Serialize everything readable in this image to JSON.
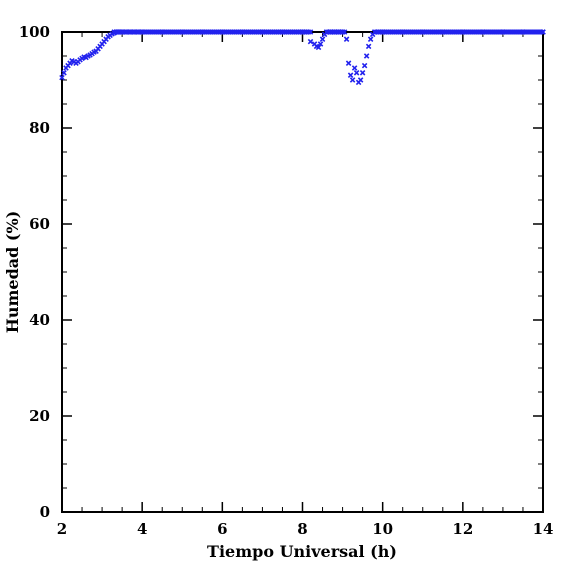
{
  "chart_data": {
    "type": "scatter",
    "title": "",
    "xlabel": "Tiempo Universal (h)",
    "ylabel": "Humedad (%)",
    "xlim": [
      2,
      14
    ],
    "ylim": [
      0,
      100
    ],
    "x_ticks": [
      "2",
      "4",
      "6",
      "8",
      "10",
      "12",
      "14"
    ],
    "y_ticks": [
      "0",
      "20",
      "40",
      "60",
      "80",
      "100"
    ],
    "marker": "x",
    "marker_color": "#2222ee",
    "grid": false,
    "series": [
      {
        "x": [
          2.0,
          2.05,
          2.1,
          2.15,
          2.2,
          2.25,
          2.3,
          2.35,
          2.4,
          2.45,
          2.5,
          2.55,
          2.6,
          2.65,
          2.7,
          2.75,
          2.8,
          2.85,
          2.9,
          2.95,
          3.0,
          3.05,
          3.1,
          3.15,
          3.2,
          3.25,
          3.3,
          3.35,
          3.4,
          3.45,
          3.5,
          3.6,
          3.7,
          3.8,
          3.9,
          4.0,
          4.5,
          5.0,
          5.5,
          6.0,
          6.5,
          7.0,
          7.5,
          8.0,
          8.2,
          8.3,
          8.35,
          8.4,
          8.45,
          8.5,
          8.55,
          8.6,
          8.7,
          8.8,
          8.9,
          9.0,
          9.1,
          9.15,
          9.2,
          9.25,
          9.3,
          9.35,
          9.4,
          9.45,
          9.5,
          9.55,
          9.6,
          9.65,
          9.7,
          9.75,
          9.8,
          10.0,
          10.5,
          11.0,
          11.5,
          12.0,
          12.5,
          13.0,
          13.5,
          14.0
        ],
        "y": [
          90.5,
          91.5,
          92.5,
          93.0,
          93.5,
          94.0,
          93.8,
          93.5,
          93.8,
          94.2,
          94.5,
          94.8,
          94.7,
          95.0,
          95.2,
          95.5,
          95.8,
          96.0,
          96.5,
          97.0,
          97.5,
          98.0,
          98.5,
          99.0,
          99.3,
          99.6,
          99.8,
          100,
          100,
          100,
          100,
          100,
          100,
          100,
          100,
          100,
          100,
          100,
          100,
          100,
          100,
          100,
          100,
          100,
          98.0,
          97.5,
          97.0,
          96.8,
          97.5,
          98.5,
          99.5,
          100,
          100,
          100,
          100,
          100,
          98.5,
          93.5,
          91.0,
          90.0,
          92.5,
          91.5,
          89.5,
          90.0,
          91.5,
          93.0,
          95.0,
          97.0,
          98.5,
          99.5,
          100,
          100,
          100,
          100,
          100,
          100,
          100,
          100,
          100,
          100
        ]
      }
    ]
  }
}
